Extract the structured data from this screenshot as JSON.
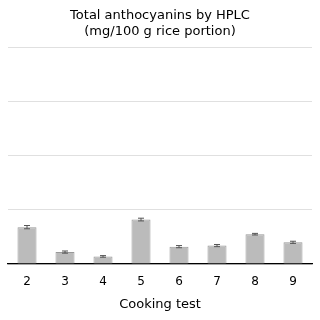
{
  "chart_data": {
    "type": "bar",
    "title": "Total anthocyanins by HPLC\n(mg/100 g rice portion)",
    "xlabel": "Cooking test",
    "categories": [
      "2",
      "3",
      "4",
      "5",
      "6",
      "7",
      "8",
      "9"
    ],
    "values": [
      0.68,
      0.22,
      0.14,
      0.82,
      0.32,
      0.34,
      0.55,
      0.4
    ],
    "errors": [
      0.03,
      0.02,
      0.015,
      0.025,
      0.02,
      0.02,
      0.015,
      0.02
    ],
    "color": "#bbbbbb",
    "ylim": [
      0,
      4.0
    ],
    "yticks": [
      0,
      1.0,
      2.0,
      3.0,
      4.0
    ],
    "grid": true,
    "tick_labels": "x"
  }
}
